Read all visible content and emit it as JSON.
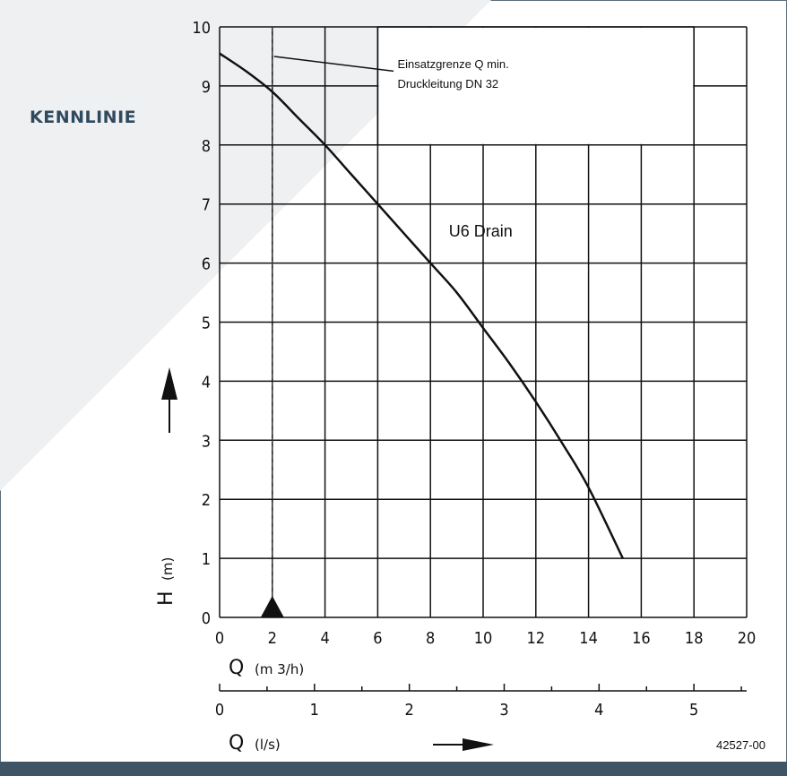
{
  "section_title": "KENNLINIE",
  "figure_code": "42527-00",
  "colors": {
    "accent": "#2f4a5e",
    "bar": "#3f5566",
    "triangle_bg": "#eef0f2",
    "frame": "#5a6b78"
  },
  "chart_data": {
    "type": "line",
    "title": "",
    "xlabel": "Q",
    "xunit": "(m 3/h)",
    "ylabel": "H",
    "yunit": "(m)",
    "x2label": "Q",
    "x2unit": "(l/s)",
    "xlim": [
      0,
      20
    ],
    "ylim": [
      0,
      10
    ],
    "x2lim": [
      0,
      5.556
    ],
    "xticks": [
      "0",
      "2",
      "4",
      "6",
      "8",
      "10",
      "12",
      "14",
      "16",
      "18",
      "20"
    ],
    "yticks": [
      "0",
      "1",
      "2",
      "3",
      "4",
      "5",
      "6",
      "7",
      "8",
      "9",
      "10"
    ],
    "x2ticks": [
      "0",
      "1",
      "2",
      "3",
      "4",
      "5"
    ],
    "grid": true,
    "series": [
      {
        "name": "U6 Drain",
        "x": [
          0,
          1,
          2,
          3,
          4,
          5,
          6,
          7,
          8,
          9,
          10,
          11,
          12,
          13,
          14,
          15.3
        ],
        "y": [
          9.55,
          9.25,
          8.9,
          8.45,
          8.0,
          7.5,
          7.0,
          6.5,
          6.0,
          5.5,
          4.9,
          4.3,
          3.65,
          2.95,
          2.2,
          1.0
        ]
      }
    ],
    "annotations": {
      "limit_line_x": 2,
      "limit_line_text_1": "Einsatzgrenze Q min.",
      "limit_line_text_2": "Druckleitung DN 32",
      "series_label": "U6 Drain"
    }
  }
}
